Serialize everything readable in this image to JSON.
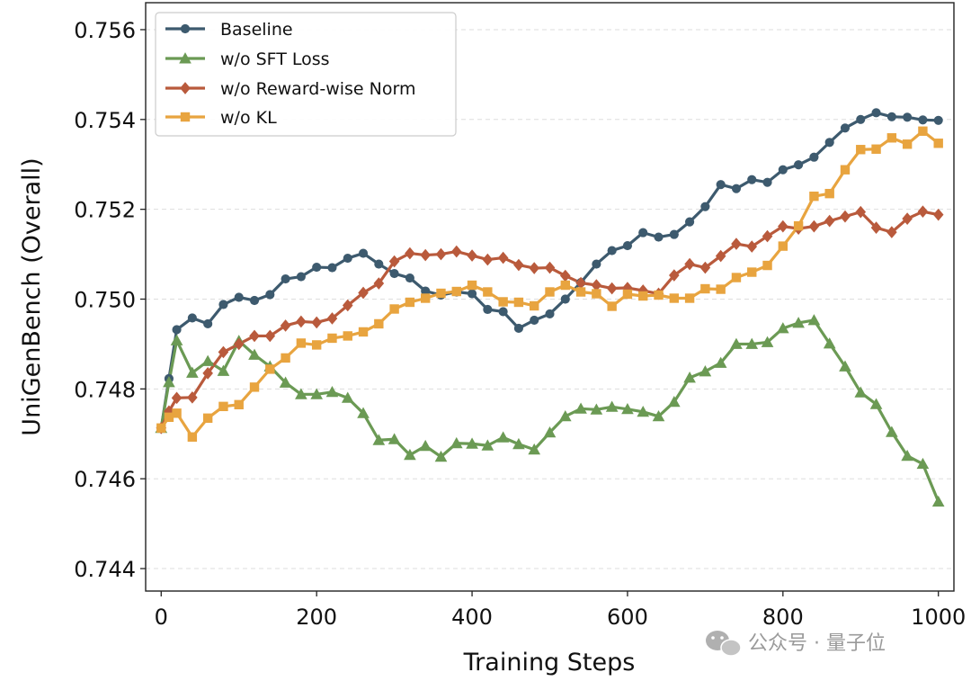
{
  "chart_data": {
    "type": "line",
    "title": "",
    "xlabel": "Training Steps",
    "ylabel": "UniGenBench (Overall)",
    "xlim": [
      -20,
      1020
    ],
    "ylim": [
      0.7435,
      0.7566
    ],
    "xticks": [
      0,
      200,
      400,
      600,
      800,
      1000
    ],
    "xtick_labels": [
      "0",
      "200",
      "400",
      "600",
      "800",
      "1000"
    ],
    "yticks": [
      0.744,
      0.746,
      0.748,
      0.75,
      0.752,
      0.754,
      0.756
    ],
    "ytick_labels": [
      "0.744",
      "0.746",
      "0.748",
      "0.750",
      "0.752",
      "0.754",
      "0.756"
    ],
    "grid": "horizontal dashed",
    "legend_position": "top-left",
    "x": [
      0,
      10,
      20,
      40,
      60,
      80,
      100,
      120,
      140,
      160,
      180,
      200,
      220,
      240,
      260,
      280,
      300,
      320,
      340,
      360,
      380,
      400,
      420,
      440,
      460,
      480,
      500,
      520,
      540,
      560,
      580,
      600,
      620,
      640,
      660,
      680,
      700,
      720,
      740,
      760,
      780,
      800,
      820,
      840,
      860,
      880,
      900,
      920,
      940,
      960,
      980,
      1000
    ],
    "series": [
      {
        "name": "Baseline",
        "color": "#3d5a6e",
        "marker": "circle",
        "values": [
          0.74713,
          0.74823,
          0.74932,
          0.74958,
          0.74945,
          0.74988,
          0.75004,
          0.74997,
          0.7501,
          0.75045,
          0.7505,
          0.75071,
          0.7507,
          0.75091,
          0.75102,
          0.75078,
          0.75057,
          0.75047,
          0.75018,
          0.75009,
          0.75016,
          0.75012,
          0.74977,
          0.74972,
          0.74935,
          0.74953,
          0.74967,
          0.75,
          0.75037,
          0.75078,
          0.75108,
          0.75119,
          0.75148,
          0.75138,
          0.75144,
          0.75172,
          0.75206,
          0.75255,
          0.75246,
          0.75266,
          0.7526,
          0.75288,
          0.75299,
          0.75316,
          0.75349,
          0.75381,
          0.754,
          0.75415,
          0.75406,
          0.75405,
          0.75399,
          0.75398
        ]
      },
      {
        "name": "w/o SFT Loss",
        "color": "#6b9a54",
        "marker": "triangle",
        "values": [
          0.74713,
          0.74815,
          0.74908,
          0.74836,
          0.74862,
          0.7484,
          0.74907,
          0.74876,
          0.7485,
          0.74814,
          0.74788,
          0.74788,
          0.74793,
          0.7478,
          0.74746,
          0.74686,
          0.74688,
          0.74653,
          0.74673,
          0.74649,
          0.74679,
          0.74678,
          0.74674,
          0.74692,
          0.74677,
          0.74665,
          0.74703,
          0.74739,
          0.74756,
          0.74754,
          0.7476,
          0.74755,
          0.74749,
          0.74739,
          0.74771,
          0.74825,
          0.74839,
          0.74858,
          0.749,
          0.749,
          0.74904,
          0.74935,
          0.74947,
          0.74953,
          0.74901,
          0.7485,
          0.74792,
          0.74766,
          0.74704,
          0.74651,
          0.74633,
          0.74549
        ]
      },
      {
        "name": "w/o Reward-wise Norm",
        "color": "#b95a3c",
        "marker": "diamond",
        "values": [
          0.74713,
          0.7475,
          0.7478,
          0.74781,
          0.74835,
          0.74882,
          0.749,
          0.74918,
          0.74918,
          0.74941,
          0.7495,
          0.74948,
          0.74957,
          0.74986,
          0.75014,
          0.75035,
          0.75084,
          0.75102,
          0.75098,
          0.751,
          0.75106,
          0.75097,
          0.75088,
          0.75092,
          0.75076,
          0.75069,
          0.7507,
          0.75052,
          0.75036,
          0.75031,
          0.75024,
          0.75025,
          0.75019,
          0.75012,
          0.75053,
          0.75078,
          0.7507,
          0.75096,
          0.75123,
          0.75117,
          0.7514,
          0.75162,
          0.75157,
          0.75162,
          0.75174,
          0.75184,
          0.75194,
          0.75159,
          0.75149,
          0.75179,
          0.75195,
          0.75188
        ]
      },
      {
        "name": "w/o KL",
        "color": "#e8a43f",
        "marker": "square",
        "values": [
          0.74713,
          0.74737,
          0.74746,
          0.74693,
          0.74735,
          0.74761,
          0.74765,
          0.74804,
          0.74844,
          0.74869,
          0.74902,
          0.74898,
          0.74913,
          0.74918,
          0.74927,
          0.74945,
          0.74978,
          0.74993,
          0.75002,
          0.75013,
          0.75017,
          0.75031,
          0.75016,
          0.74994,
          0.74993,
          0.74985,
          0.75016,
          0.75031,
          0.75016,
          0.75012,
          0.74984,
          0.75011,
          0.75007,
          0.75009,
          0.75002,
          0.75002,
          0.75023,
          0.75022,
          0.75048,
          0.7506,
          0.75075,
          0.75118,
          0.75163,
          0.75229,
          0.75235,
          0.75288,
          0.75333,
          0.75334,
          0.75359,
          0.75345,
          0.75374,
          0.75347
        ]
      }
    ]
  },
  "watermark": {
    "text": "公众号 · 量子位",
    "icon": "wechat-icon"
  }
}
